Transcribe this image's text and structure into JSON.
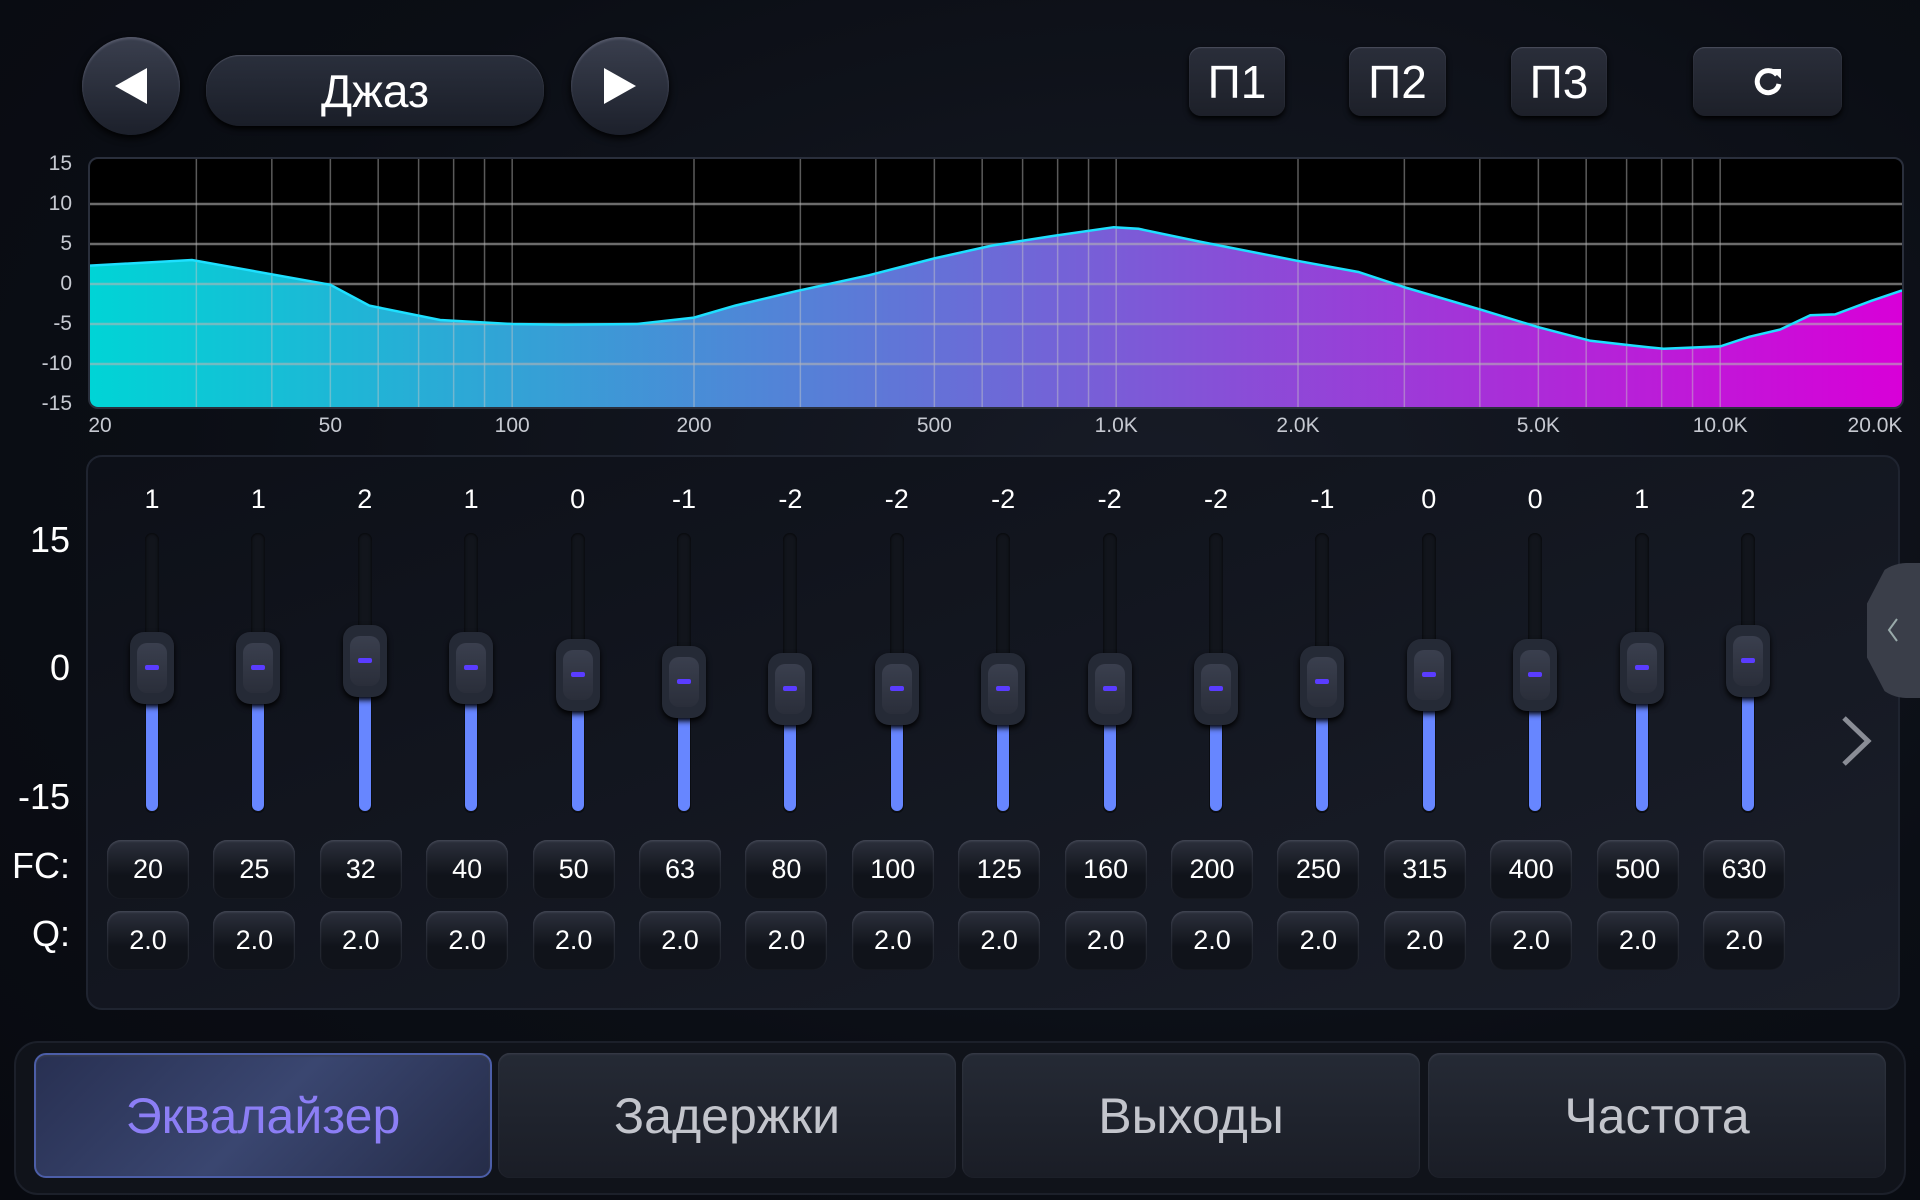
{
  "header": {
    "prev_icon": "triangle-left-icon",
    "preset_name": "Джаз",
    "next_icon": "triangle-right-icon",
    "presets": [
      "П1",
      "П2",
      "П3"
    ],
    "reset_icon": "refresh-icon"
  },
  "chart_data": {
    "type": "area",
    "x_scale": "log",
    "xlim": [
      20,
      20000
    ],
    "ylim": [
      -15,
      15
    ],
    "grid": true,
    "y_ticks": [
      "15",
      "10",
      "5",
      "0",
      "-5",
      "-10",
      "-15"
    ],
    "x_ticks": [
      {
        "v": 20,
        "label": "20"
      },
      {
        "v": 50,
        "label": "50"
      },
      {
        "v": 100,
        "label": "100"
      },
      {
        "v": 200,
        "label": "200"
      },
      {
        "v": 500,
        "label": "500"
      },
      {
        "v": 1000,
        "label": "1.0K"
      },
      {
        "v": 2000,
        "label": "2.0K"
      },
      {
        "v": 5000,
        "label": "5.0K"
      },
      {
        "v": 10000,
        "label": "10.0K"
      },
      {
        "v": 20000,
        "label": "20.0K"
      }
    ],
    "x": [
      20,
      29.5,
      50,
      58,
      76,
      100,
      122,
      161,
      200,
      234,
      295,
      390,
      500,
      622,
      785,
      991,
      1089,
      1375,
      1995,
      2518,
      3030,
      4010,
      5000,
      6100,
      7180,
      8060,
      10000,
      11170,
      12560,
      14100,
      15500,
      17800,
      20000
    ],
    "y": [
      2.3,
      3.0,
      -0.1,
      -2.7,
      -4.5,
      -5.0,
      -5.1,
      -5.0,
      -4.2,
      -2.7,
      -0.9,
      1.1,
      3.2,
      4.8,
      6.0,
      7.1,
      6.9,
      5.3,
      2.9,
      1.5,
      -0.5,
      -3.2,
      -5.4,
      -7.1,
      -7.7,
      -8.1,
      -7.8,
      -6.6,
      -5.7,
      -3.9,
      -3.8,
      -2.1,
      -0.8
    ],
    "colors": {
      "start": "#00d4d6",
      "end": "#d800d8",
      "line": "#1ee0ff"
    }
  },
  "eq": {
    "scale": [
      "15",
      "0",
      "-15"
    ],
    "fc_label": "FC:",
    "q_label": "Q:",
    "range": [
      -15,
      15
    ],
    "gains": [
      1,
      1,
      2,
      1,
      0,
      -1,
      -2,
      -2,
      -2,
      -2,
      -2,
      -1,
      0,
      0,
      1,
      2
    ],
    "fc": [
      "20",
      "25",
      "32",
      "40",
      "50",
      "63",
      "80",
      "100",
      "125",
      "160",
      "200",
      "250",
      "315",
      "400",
      "500",
      "630"
    ],
    "q": [
      "2.0",
      "2.0",
      "2.0",
      "2.0",
      "2.0",
      "2.0",
      "2.0",
      "2.0",
      "2.0",
      "2.0",
      "2.0",
      "2.0",
      "2.0",
      "2.0",
      "2.0",
      "2.0"
    ],
    "next_icon": "chevron-right-icon",
    "side_icon": "chevron-left-icon",
    "fill_color": "#6786ff"
  },
  "tabs": [
    {
      "label": "Эквалайзер",
      "active": true
    },
    {
      "label": "Задержки"
    },
    {
      "label": "Выходы"
    },
    {
      "label": "Частота"
    }
  ]
}
